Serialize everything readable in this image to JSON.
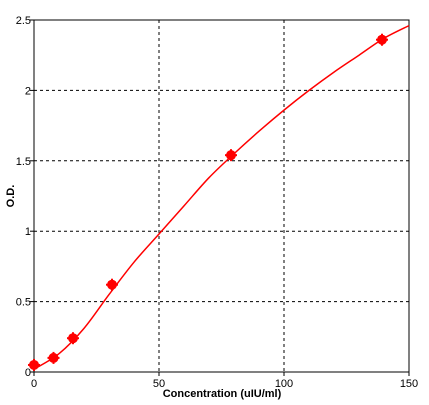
{
  "chart_data": {
    "type": "scatter",
    "title": "",
    "xlabel": "Concentration (uIU/ml)",
    "ylabel": "O.D.",
    "xlim": [
      0,
      150
    ],
    "ylim": [
      0,
      2.5
    ],
    "x_ticks": [
      0,
      50,
      100,
      150
    ],
    "y_ticks": [
      0,
      0.5,
      1,
      1.5,
      2,
      2.5
    ],
    "x_tick_labels": [
      "0",
      "50",
      "100",
      "150"
    ],
    "y_tick_labels": [
      "0",
      "0.5",
      "1",
      "1.5",
      "2",
      "2.5"
    ],
    "grid": true,
    "grid_style": "dashed",
    "colors": {
      "series": "#ff0000",
      "axis": "#000000",
      "grid": "#000000"
    },
    "series": [
      {
        "type": "scatter",
        "x": [
          0,
          7.8,
          15.6,
          31.2,
          78.8,
          139.2
        ],
        "y": [
          0.05,
          0.1,
          0.24,
          0.62,
          1.54,
          2.36
        ]
      },
      {
        "type": "line",
        "x": [
          0,
          10,
          20,
          30,
          40,
          50,
          60,
          70,
          80,
          90,
          100,
          110,
          120,
          130,
          140,
          150
        ],
        "y": [
          0.02,
          0.13,
          0.31,
          0.55,
          0.78,
          0.98,
          1.18,
          1.38,
          1.55,
          1.71,
          1.86,
          2.0,
          2.13,
          2.25,
          2.37,
          2.46
        ]
      }
    ]
  }
}
